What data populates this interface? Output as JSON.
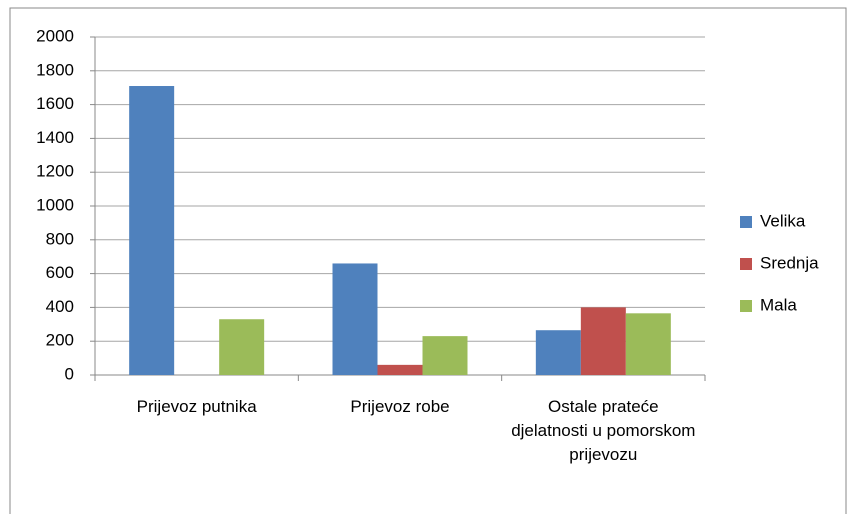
{
  "chart_data": {
    "type": "bar",
    "categories": [
      "Prijevoz putnika",
      "Prijevoz robe",
      "Ostale prateće djelatnosti u pomorskom prijevozu"
    ],
    "series": [
      {
        "name": "Velika",
        "color": "#4f81bd",
        "values": [
          1710,
          660,
          265
        ]
      },
      {
        "name": "Srednja",
        "color": "#c0504d",
        "values": [
          0,
          60,
          400
        ]
      },
      {
        "name": "Mala",
        "color": "#9bbb59",
        "values": [
          330,
          230,
          365
        ]
      }
    ],
    "ylim": [
      0,
      2000
    ],
    "yticks": [
      0,
      200,
      400,
      600,
      800,
      1000,
      1200,
      1400,
      1600,
      1800,
      2000
    ],
    "grid": true,
    "legend": "right"
  }
}
